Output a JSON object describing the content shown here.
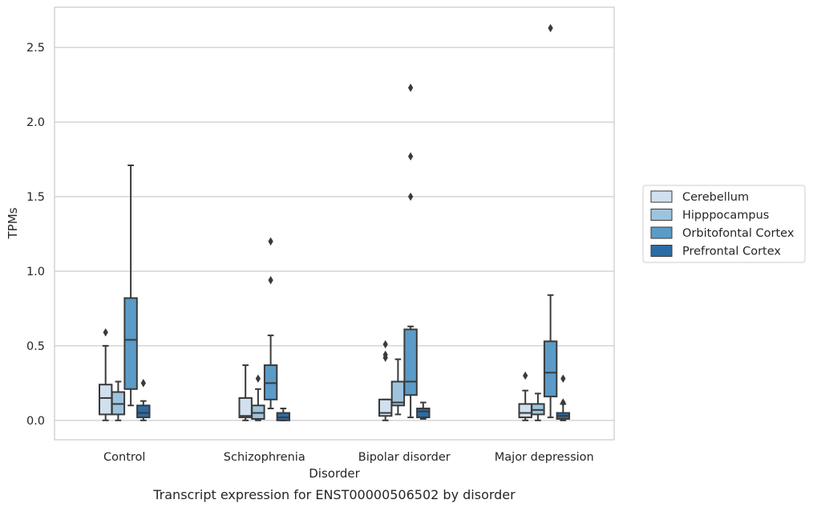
{
  "chart_data": {
    "type": "box",
    "caption": "Transcript expression for ENST00000506502 by disorder",
    "xlabel": "Disorder",
    "ylabel": "TPMs",
    "ylim": [
      -0.13,
      2.77
    ],
    "yticks": [
      0.0,
      0.5,
      1.0,
      1.5,
      2.0,
      2.5
    ],
    "ytick_labels": [
      "0.0",
      "0.5",
      "1.0",
      "1.5",
      "2.0",
      "2.5"
    ],
    "grid": "horizontal",
    "legend_position": "right",
    "categories": [
      "Control",
      "Schizophrenia",
      "Bipolar disorder",
      "Major depression"
    ],
    "series": [
      {
        "name": "Cerebellum",
        "color": "#d1e0ee",
        "boxes": [
          {
            "whisker_low": 0.0,
            "q1": 0.04,
            "median": 0.15,
            "q3": 0.24,
            "whisker_high": 0.5,
            "outliers": [
              0.59
            ]
          },
          {
            "whisker_low": 0.0,
            "q1": 0.02,
            "median": 0.03,
            "q3": 0.15,
            "whisker_high": 0.37,
            "outliers": []
          },
          {
            "whisker_low": 0.0,
            "q1": 0.03,
            "median": 0.05,
            "q3": 0.14,
            "whisker_high": 0.14,
            "outliers": [
              0.42,
              0.44,
              0.51
            ]
          },
          {
            "whisker_low": 0.0,
            "q1": 0.02,
            "median": 0.05,
            "q3": 0.11,
            "whisker_high": 0.2,
            "outliers": [
              0.3
            ]
          }
        ]
      },
      {
        "name": "Hipppocampus",
        "color": "#9ec4dd",
        "boxes": [
          {
            "whisker_low": 0.0,
            "q1": 0.04,
            "median": 0.11,
            "q3": 0.19,
            "whisker_high": 0.26,
            "outliers": []
          },
          {
            "whisker_low": 0.0,
            "q1": 0.01,
            "median": 0.05,
            "q3": 0.1,
            "whisker_high": 0.21,
            "outliers": [
              0.28
            ]
          },
          {
            "whisker_low": 0.04,
            "q1": 0.1,
            "median": 0.12,
            "q3": 0.26,
            "whisker_high": 0.41,
            "outliers": []
          },
          {
            "whisker_low": 0.0,
            "q1": 0.04,
            "median": 0.07,
            "q3": 0.11,
            "whisker_high": 0.18,
            "outliers": []
          }
        ]
      },
      {
        "name": "Orbitofontal Cortex",
        "color": "#5b9bc8",
        "boxes": [
          {
            "whisker_low": 0.1,
            "q1": 0.21,
            "median": 0.54,
            "q3": 0.82,
            "whisker_high": 1.71,
            "outliers": []
          },
          {
            "whisker_low": 0.08,
            "q1": 0.14,
            "median": 0.25,
            "q3": 0.37,
            "whisker_high": 0.57,
            "outliers": [
              0.94,
              1.2
            ]
          },
          {
            "whisker_low": 0.02,
            "q1": 0.17,
            "median": 0.26,
            "q3": 0.61,
            "whisker_high": 0.63,
            "outliers": [
              1.5,
              1.77,
              2.23
            ]
          },
          {
            "whisker_low": 0.02,
            "q1": 0.16,
            "median": 0.32,
            "q3": 0.53,
            "whisker_high": 0.84,
            "outliers": [
              2.63
            ]
          }
        ]
      },
      {
        "name": "Prefrontal Cortex",
        "color": "#2b6ca6",
        "boxes": [
          {
            "whisker_low": 0.0,
            "q1": 0.02,
            "median": 0.05,
            "q3": 0.1,
            "whisker_high": 0.13,
            "outliers": [
              0.25
            ]
          },
          {
            "whisker_low": 0.0,
            "q1": 0.0,
            "median": 0.02,
            "q3": 0.05,
            "whisker_high": 0.08,
            "outliers": []
          },
          {
            "whisker_low": 0.01,
            "q1": 0.02,
            "median": 0.06,
            "q3": 0.08,
            "whisker_high": 0.12,
            "outliers": []
          },
          {
            "whisker_low": 0.0,
            "q1": 0.01,
            "median": 0.03,
            "q3": 0.05,
            "whisker_high": 0.11,
            "outliers": [
              0.12,
              0.28
            ]
          }
        ]
      }
    ]
  }
}
